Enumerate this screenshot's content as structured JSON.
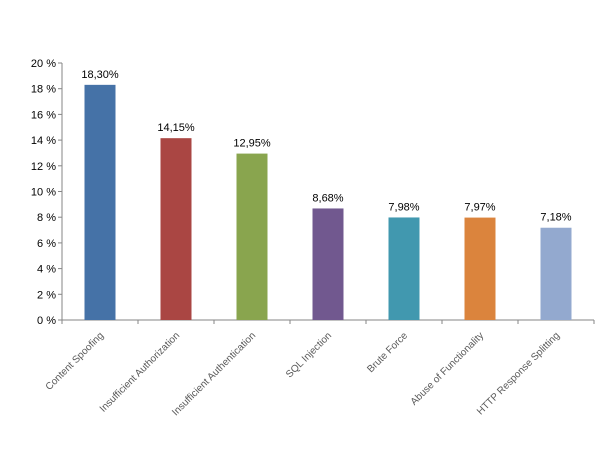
{
  "chart_data": {
    "type": "bar",
    "title": "",
    "xlabel": "",
    "ylabel": "",
    "ylim": [
      0,
      20
    ],
    "y_ticks": [
      0,
      2,
      4,
      6,
      8,
      10,
      12,
      14,
      16,
      18,
      20
    ],
    "y_tick_labels": [
      "0  %",
      "2  %",
      "4  %",
      "6  %",
      "8  %",
      "10  %",
      "12  %",
      "14  %",
      "16  %",
      "18  %",
      "20  %"
    ],
    "grid": false,
    "legend": "none",
    "categories": [
      "Content Spoofing",
      "Insufficient Authorization",
      "Insufficient Authentication",
      "SQL Injection",
      "Brute Force",
      "Abuse of Functionality",
      "HTTP Response Splitting"
    ],
    "values": [
      18.3,
      14.15,
      12.95,
      8.68,
      7.98,
      7.97,
      7.18
    ],
    "value_labels": [
      "18,30%",
      "14,15%",
      "12,95%",
      "8,68%",
      "7,98%",
      "7,97%",
      "7,18%"
    ],
    "colors": [
      "#4572a7",
      "#aa4643",
      "#89a54e",
      "#71588f",
      "#4198af",
      "#db843d",
      "#93a9cf"
    ]
  }
}
